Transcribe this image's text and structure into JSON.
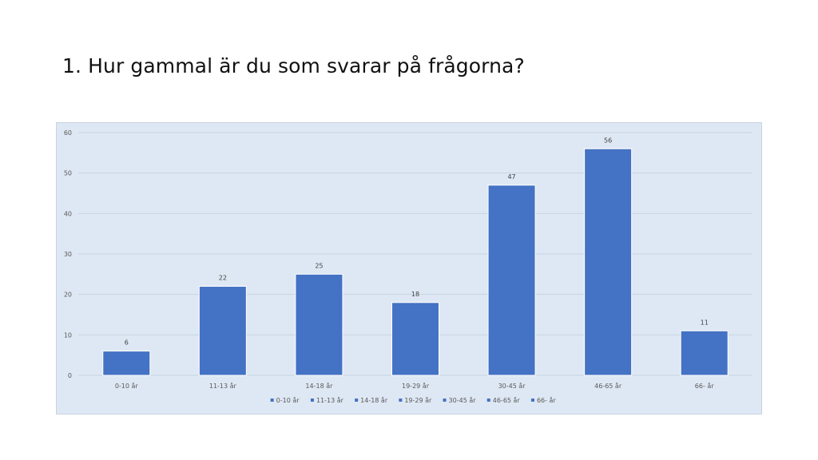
{
  "slide": {
    "title": "1. Hur gammal är du som svarar på frågorna?"
  },
  "colors": {
    "bar": "#4472c4",
    "plot_background": "#dee8f4",
    "gridline": "#c8d4e3",
    "axis_text": "#595959"
  },
  "chart_data": {
    "type": "bar",
    "title": "",
    "xlabel": "",
    "ylabel": "",
    "categories": [
      "0-10 år",
      "11-13 år",
      "14-18 år",
      "19-29 år",
      "30-45 år",
      "46-65 år",
      "66- år"
    ],
    "values": [
      6,
      22,
      25,
      18,
      47,
      56,
      11
    ],
    "ylim": [
      0,
      60
    ],
    "yticks": [
      0,
      10,
      20,
      30,
      40,
      50,
      60
    ],
    "data_labels": true,
    "grid": true,
    "legend": {
      "placement": "bottom",
      "entries": [
        "0-10 år",
        "11-13 år",
        "14-18 år",
        "19-29 år",
        "30-45 år",
        "46-65 år",
        "66- år"
      ]
    }
  }
}
